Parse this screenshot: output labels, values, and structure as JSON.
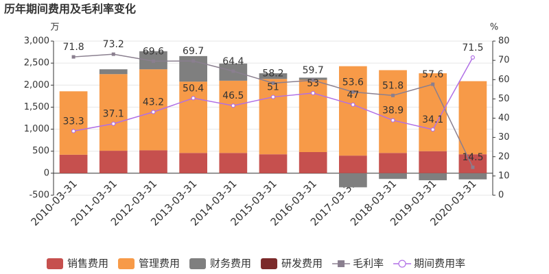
{
  "chart_data": {
    "type": "bar-line",
    "title": "历年期间费用及毛利率变化",
    "y_label": "万",
    "y2_label": "%",
    "categories": [
      "2010-03-31",
      "2011-03-31",
      "2012-03-31",
      "2013-03-31",
      "2014-03-31",
      "2015-03-31",
      "2016-03-31",
      "2017-03-31",
      "2018-03-31",
      "2019-03-31",
      "2020-03-31"
    ],
    "ylim": [
      -500,
      3000
    ],
    "yticks": [
      -500,
      0,
      500,
      {
        "value": 1000,
        "label": "1,000"
      },
      {
        "value": 1500,
        "label": "1,500"
      },
      {
        "value": 2000,
        "label": "2,000"
      },
      {
        "value": 2500,
        "label": "2,500"
      },
      {
        "value": 3000,
        "label": "3,000"
      }
    ],
    "y2lim": [
      0,
      80
    ],
    "y2ticks": [
      0,
      10,
      20,
      30,
      40,
      50,
      60,
      70,
      80
    ],
    "grid": true,
    "legend": "bottom",
    "series": [
      {
        "name": "销售费用",
        "type": "bar",
        "color": "#c6504e",
        "values": [
          420,
          510,
          520,
          460,
          460,
          430,
          480,
          400,
          460,
          500,
          430
        ]
      },
      {
        "name": "管理费用",
        "type": "bar",
        "color": "#f79a48",
        "values": [
          1440,
          1740,
          1840,
          1620,
          1640,
          1710,
          1640,
          2030,
          1880,
          1770,
          1660
        ]
      },
      {
        "name": "财务费用",
        "type": "bar",
        "color": "#7f7f7f",
        "values": [
          0,
          110,
          410,
          580,
          390,
          130,
          50,
          -320,
          -130,
          -160,
          -140
        ]
      },
      {
        "name": "研发费用",
        "type": "bar",
        "color": "#7b2a2a",
        "values": [
          0,
          0,
          0,
          0,
          0,
          0,
          0,
          0,
          0,
          0,
          0
        ]
      },
      {
        "name": "毛利率",
        "type": "line",
        "axis": "y2",
        "marker": "square",
        "color": "#8a7f8f",
        "values": [
          71.8,
          73.2,
          69.6,
          69.7,
          64.4,
          58.2,
          59.7,
          53.6,
          51.8,
          57.6,
          14.5
        ]
      },
      {
        "name": "期间费用率",
        "type": "line",
        "axis": "y2",
        "marker": "circle",
        "color": "#b06fe6",
        "values": [
          33.3,
          37.1,
          43.2,
          50.4,
          46.5,
          51,
          53,
          47,
          38.9,
          34.1,
          71.5
        ]
      }
    ]
  }
}
